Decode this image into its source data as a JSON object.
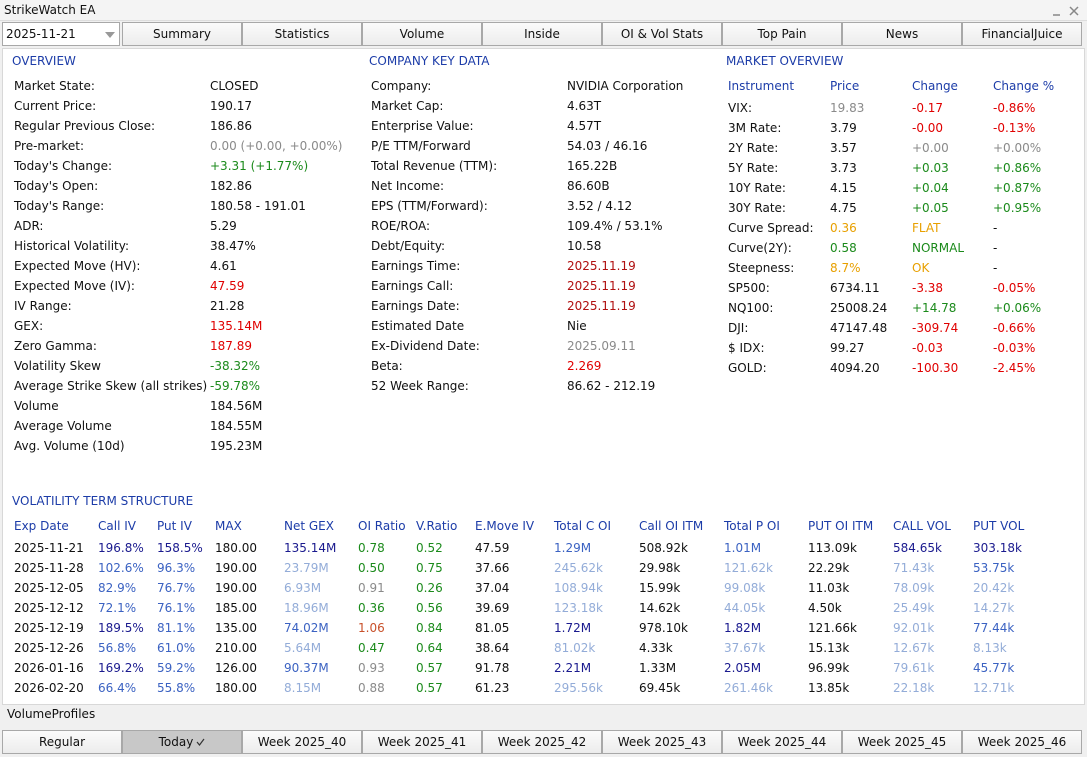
{
  "window": {
    "title": "StrikeWatch EA"
  },
  "toolbar": {
    "date": "2025-11-21",
    "tabs": [
      "Summary",
      "Statistics",
      "Volume",
      "Inside",
      "OI & Vol Stats",
      "Top Pain",
      "News",
      "FinancialJuice"
    ]
  },
  "overview": {
    "title": "OVERVIEW",
    "rows": [
      {
        "label": "Market State:",
        "value": "CLOSED"
      },
      {
        "label": "Current Price:",
        "value": "190.17"
      },
      {
        "label": "Regular Previous Close:",
        "value": "186.86"
      },
      {
        "label": "Pre-market:",
        "value": "0.00 (+0.00, +0.00%)",
        "color": "gray"
      },
      {
        "label": "Today's Change:",
        "value": "+3.31 (+1.77%)",
        "color": "green"
      },
      {
        "label": "Today's Open:",
        "value": "182.86"
      },
      {
        "label": "Today's Range:",
        "value": "180.58 - 191.01"
      },
      {
        "label": "ADR:",
        "value": "5.29"
      },
      {
        "label": "Historical Volatility:",
        "value": "38.47%"
      },
      {
        "label": "Expected Move (HV):",
        "value": "4.61"
      },
      {
        "label": "Expected Move (IV):",
        "value": "47.59",
        "color": "red"
      },
      {
        "label": "IV Range:",
        "value": "21.28"
      },
      {
        "label": "GEX:",
        "value": "135.14M",
        "color": "red"
      },
      {
        "label": "Zero Gamma:",
        "value": "187.89",
        "color": "red"
      },
      {
        "label": "Volatility Skew",
        "value": "-38.32%",
        "color": "green"
      },
      {
        "label": "Average Strike Skew (all strikes)",
        "value": "-59.78%",
        "color": "green"
      },
      {
        "label": "Volume",
        "value": "184.56M"
      },
      {
        "label": "Average Volume",
        "value": "184.55M"
      },
      {
        "label": "Avg. Volume (10d)",
        "value": "195.23M"
      }
    ]
  },
  "company": {
    "title": "COMPANY KEY DATA",
    "rows": [
      {
        "label": "Company:",
        "value": "NVIDIA Corporation"
      },
      {
        "label": "Market Cap:",
        "value": "4.63T"
      },
      {
        "label": "Enterprise Value:",
        "value": "4.57T"
      },
      {
        "label": "P/E TTM/Forward",
        "value": "54.03 / 46.16"
      },
      {
        "label": "Total Revenue (TTM):",
        "value": "165.22B"
      },
      {
        "label": "Net Income:",
        "value": "86.60B"
      },
      {
        "label": "EPS (TTM/Forward):",
        "value": "3.52 / 4.12"
      },
      {
        "label": "ROE/ROA:",
        "value": "109.4% / 53.1%"
      },
      {
        "label": "Debt/Equity:",
        "value": "10.58"
      },
      {
        "label": "Earnings Time:",
        "value": "2025.11.19",
        "color": "darkred"
      },
      {
        "label": "Earnings Call:",
        "value": "2025.11.19",
        "color": "darkred"
      },
      {
        "label": "Earnings Date:",
        "value": "2025.11.19",
        "color": "darkred"
      },
      {
        "label": "Estimated Date",
        "value": "Nie"
      },
      {
        "label": "Ex-Dividend Date:",
        "value": "2025.09.11",
        "color": "gray"
      },
      {
        "label": "Beta:",
        "value": "2.269",
        "color": "red"
      },
      {
        "label": "52 Week Range:",
        "value": "86.62 - 212.19"
      }
    ]
  },
  "market": {
    "title": "MARKET OVERVIEW",
    "headers": [
      "Instrument",
      "Price",
      "Change",
      "Change %"
    ],
    "rows": [
      {
        "cells": [
          "VIX:",
          "19.83",
          "-0.17",
          "-0.86%"
        ],
        "colors": [
          "black",
          "gray",
          "red",
          "red"
        ]
      },
      {
        "cells": [
          "3M Rate:",
          "3.79",
          "-0.00",
          "-0.13%"
        ],
        "colors": [
          "black",
          "black",
          "red",
          "red"
        ]
      },
      {
        "cells": [
          "2Y Rate:",
          "3.57",
          "+0.00",
          "+0.00%"
        ],
        "colors": [
          "black",
          "black",
          "gray",
          "gray"
        ]
      },
      {
        "cells": [
          "5Y Rate:",
          "3.73",
          "+0.03",
          "+0.86%"
        ],
        "colors": [
          "black",
          "black",
          "green",
          "green"
        ]
      },
      {
        "cells": [
          "10Y Rate:",
          "4.15",
          "+0.04",
          "+0.87%"
        ],
        "colors": [
          "black",
          "black",
          "green",
          "green"
        ]
      },
      {
        "cells": [
          "30Y Rate:",
          "4.75",
          "+0.05",
          "+0.95%"
        ],
        "colors": [
          "black",
          "black",
          "green",
          "green"
        ]
      },
      {
        "cells": [
          "Curve Spread:",
          "0.36",
          "FLAT",
          "-"
        ],
        "colors": [
          "black",
          "orange",
          "orange",
          "black"
        ]
      },
      {
        "cells": [
          "Curve(2Y):",
          "0.58",
          "NORMAL",
          "-"
        ],
        "colors": [
          "black",
          "green",
          "green",
          "black"
        ]
      },
      {
        "cells": [
          "Steepness:",
          "8.7%",
          "OK",
          "-"
        ],
        "colors": [
          "black",
          "orange",
          "orange",
          "black"
        ]
      },
      {
        "cells": [
          "SP500:",
          "6734.11",
          "-3.38",
          "-0.05%"
        ],
        "colors": [
          "black",
          "black",
          "red",
          "red"
        ]
      },
      {
        "cells": [
          "NQ100:",
          "25008.24",
          "+14.78",
          "+0.06%"
        ],
        "colors": [
          "black",
          "black",
          "green",
          "green"
        ]
      },
      {
        "cells": [
          "DJI:",
          "47147.48",
          "-309.74",
          "-0.66%"
        ],
        "colors": [
          "black",
          "black",
          "red",
          "red"
        ]
      },
      {
        "cells": [
          "$ IDX:",
          "99.27",
          "-0.03",
          "-0.03%"
        ],
        "colors": [
          "black",
          "black",
          "red",
          "red"
        ]
      },
      {
        "cells": [
          "GOLD:",
          "4094.20",
          "-100.30",
          "-2.45%"
        ],
        "colors": [
          "black",
          "black",
          "red",
          "red"
        ]
      }
    ]
  },
  "term_structure": {
    "title": "VOLATILITY TERM STRUCTURE",
    "headers": [
      "Exp Date",
      "Call IV",
      "Put IV",
      "MAX",
      "Net GEX",
      "OI Ratio",
      "V.Ratio",
      "E.Move IV",
      "Total C OI",
      "Call OI ITM",
      "Total P OI",
      "PUT OI ITM",
      "CALL VOL",
      "PUT VOL"
    ],
    "rows": [
      {
        "cells": [
          "2025-11-21",
          "196.8%",
          "158.5%",
          "180.00",
          "135.14M",
          "0.78",
          "0.52",
          "47.59",
          "1.29M",
          "508.92k",
          "1.01M",
          "113.09k",
          "584.65k",
          "303.18k"
        ],
        "colors": [
          "black",
          "navy",
          "navy",
          "black",
          "navy",
          "green",
          "green",
          "black",
          "blue",
          "black",
          "blue",
          "black",
          "navy",
          "navy"
        ]
      },
      {
        "cells": [
          "2025-11-28",
          "102.6%",
          "96.3%",
          "190.00",
          "23.79M",
          "0.50",
          "0.75",
          "37.66",
          "245.62k",
          "29.98k",
          "121.62k",
          "22.29k",
          "71.43k",
          "53.75k"
        ],
        "colors": [
          "black",
          "blue",
          "blue",
          "black",
          "light",
          "green",
          "green",
          "black",
          "light",
          "black",
          "light",
          "black",
          "light",
          "blue"
        ]
      },
      {
        "cells": [
          "2025-12-05",
          "82.9%",
          "76.7%",
          "190.00",
          "6.93M",
          "0.91",
          "0.26",
          "37.04",
          "108.94k",
          "15.99k",
          "99.08k",
          "11.03k",
          "78.09k",
          "20.42k"
        ],
        "colors": [
          "black",
          "blue",
          "blue",
          "black",
          "light",
          "gray",
          "green",
          "black",
          "light",
          "black",
          "light",
          "black",
          "light",
          "light"
        ]
      },
      {
        "cells": [
          "2025-12-12",
          "72.1%",
          "76.1%",
          "185.00",
          "18.96M",
          "0.36",
          "0.56",
          "39.69",
          "123.18k",
          "14.62k",
          "44.05k",
          "4.50k",
          "25.49k",
          "14.27k"
        ],
        "colors": [
          "black",
          "blue",
          "blue",
          "black",
          "light",
          "green",
          "green",
          "black",
          "light",
          "black",
          "light",
          "black",
          "light",
          "light"
        ]
      },
      {
        "cells": [
          "2025-12-19",
          "189.5%",
          "81.1%",
          "135.00",
          "74.02M",
          "1.06",
          "0.84",
          "81.05",
          "1.72M",
          "978.10k",
          "1.82M",
          "121.66k",
          "92.01k",
          "77.44k"
        ],
        "colors": [
          "black",
          "navy",
          "blue",
          "black",
          "blue",
          "rust",
          "green",
          "black",
          "navy",
          "black",
          "navy",
          "black",
          "light",
          "blue"
        ]
      },
      {
        "cells": [
          "2025-12-26",
          "56.8%",
          "61.0%",
          "210.00",
          "5.64M",
          "0.47",
          "0.64",
          "38.64",
          "81.02k",
          "4.33k",
          "37.67k",
          "15.13k",
          "12.67k",
          "8.13k"
        ],
        "colors": [
          "black",
          "blue",
          "blue",
          "black",
          "light",
          "green",
          "green",
          "black",
          "light",
          "black",
          "light",
          "black",
          "light",
          "light"
        ]
      },
      {
        "cells": [
          "2026-01-16",
          "169.2%",
          "59.2%",
          "126.00",
          "90.37M",
          "0.93",
          "0.57",
          "91.78",
          "2.21M",
          "1.33M",
          "2.05M",
          "96.99k",
          "79.61k",
          "45.77k"
        ],
        "colors": [
          "black",
          "navy",
          "blue",
          "black",
          "blue",
          "gray",
          "green",
          "black",
          "navy",
          "black",
          "navy",
          "black",
          "light",
          "blue"
        ]
      },
      {
        "cells": [
          "2026-02-20",
          "66.4%",
          "55.8%",
          "180.00",
          "8.15M",
          "0.88",
          "0.57",
          "61.23",
          "295.56k",
          "69.45k",
          "261.46k",
          "13.85k",
          "22.18k",
          "12.71k"
        ],
        "colors": [
          "black",
          "blue",
          "blue",
          "black",
          "light",
          "gray",
          "green",
          "black",
          "light",
          "black",
          "light",
          "black",
          "light",
          "light"
        ]
      }
    ]
  },
  "volume_profiles": {
    "title": "VolumeProfiles",
    "tabs": [
      "Regular",
      "Today",
      "Week 2025_40",
      "Week 2025_41",
      "Week 2025_42",
      "Week 2025_43",
      "Week 2025_44",
      "Week 2025_45",
      "Week 2025_46"
    ],
    "selected": 1
  }
}
